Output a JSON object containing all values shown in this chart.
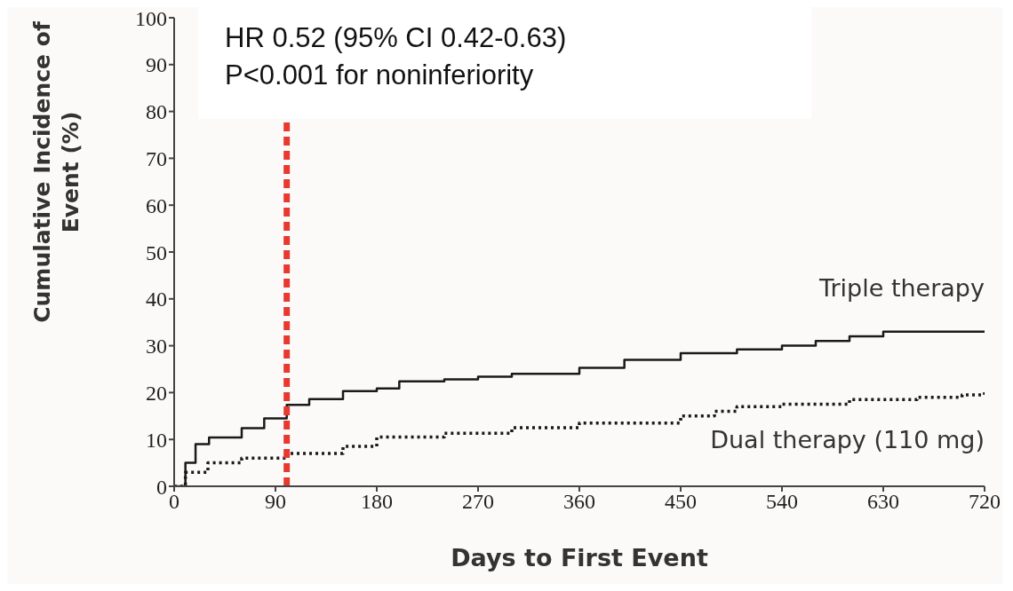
{
  "chart_data": {
    "type": "step",
    "xlabel": "Days to First Event",
    "ylabel": "Cumulative Incidence of Event (%)",
    "annotations": [
      "HR 0.52 (95% CI 0.42-0.63)",
      "P<0.001 for noninferiority"
    ],
    "series": [
      {
        "name": "Triple therapy",
        "color": "#1a1a1a",
        "line_style": "solid",
        "x": [
          0,
          10,
          19,
          31,
          60,
          80,
          100,
          120,
          150,
          180,
          200,
          240,
          270,
          300,
          360,
          400,
          450,
          500,
          540,
          570,
          600,
          630,
          720
        ],
        "values": [
          0,
          5,
          9,
          10.4,
          12.4,
          14.5,
          17.4,
          18.6,
          20.3,
          20.9,
          22.4,
          22.8,
          23.4,
          24,
          25.3,
          27,
          28.4,
          29.2,
          30,
          31,
          32,
          33,
          33
        ]
      },
      {
        "name": "Dual therapy (110 mg)",
        "color": "#1a1a1a",
        "line_style": "dotted",
        "x": [
          0,
          10,
          30,
          60,
          100,
          150,
          180,
          240,
          300,
          360,
          450,
          480,
          500,
          540,
          600,
          660,
          700,
          720
        ],
        "values": [
          0,
          3,
          5,
          6,
          7,
          8.5,
          10.5,
          11.3,
          12.5,
          13.5,
          15,
          16,
          17,
          17.5,
          18.5,
          19,
          19.5,
          20.5
        ]
      }
    ],
    "xlim": [
      0,
      720
    ],
    "xticks": [
      0,
      90,
      180,
      270,
      360,
      450,
      540,
      630,
      720
    ],
    "ylim": [
      0,
      100
    ],
    "yticks": [
      0,
      10,
      20,
      30,
      40,
      50,
      60,
      70,
      80,
      90,
      100
    ],
    "ref_lines": [
      {
        "axis": "x",
        "value": 100,
        "color": "#e8392e",
        "line_style": "dashed"
      }
    ],
    "grid": false,
    "legend": false
  }
}
